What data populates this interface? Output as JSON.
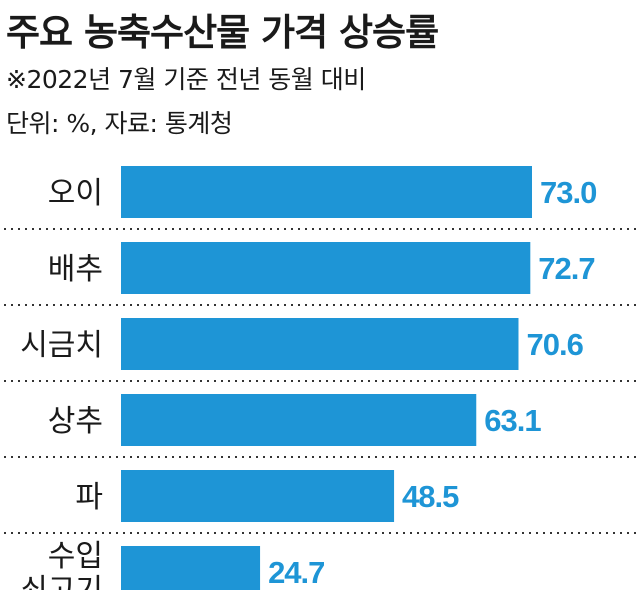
{
  "header": {
    "title": "주요 농축수산물 가격 상승률",
    "subtitle": "※2022년 7월 기준 전년 동월 대비",
    "unit": "단위: %, 자료: 통계청"
  },
  "colors": {
    "bar": "#1e95d6",
    "value_label": "#1e95d6",
    "category_label": "#1a1a1a",
    "divider": "#333333"
  },
  "chart_data": {
    "type": "bar",
    "orientation": "horizontal",
    "categories": [
      "오이",
      "배추",
      "시금치",
      "상추",
      "파",
      "수입\n쇠고기"
    ],
    "values": [
      73.0,
      72.7,
      70.6,
      63.1,
      48.5,
      24.7
    ],
    "value_labels": [
      "73.0",
      "72.7",
      "70.6",
      "63.1",
      "48.5",
      "24.7"
    ],
    "xlim": [
      0,
      75
    ],
    "grid": false,
    "legend": "none"
  }
}
